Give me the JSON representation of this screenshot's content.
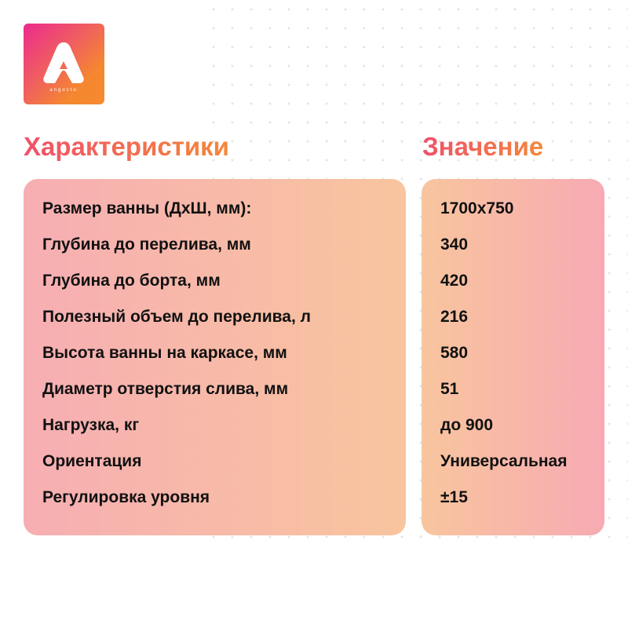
{
  "logo": {
    "text": "angosto",
    "colors": [
      "#ec2a8e",
      "#f68a30"
    ]
  },
  "headers": {
    "characteristics": "Характеристики",
    "value": "Значение"
  },
  "rows": [
    {
      "name": "Размер ванны (ДхШ, мм):",
      "value": "1700x750"
    },
    {
      "name": "Глубина до перелива, мм",
      "value": "340"
    },
    {
      "name": "Глубина до борта, мм",
      "value": "420"
    },
    {
      "name": "Полезный объем до перелива, л",
      "value": "216"
    },
    {
      "name": "Высота ванны на каркасе, мм",
      "value": "580"
    },
    {
      "name": "Диаметр отверстия слива, мм",
      "value": "51"
    },
    {
      "name": "Нагрузка, кг",
      "value": "до 900"
    },
    {
      "name": "Ориентация",
      "value": "Универсальная"
    },
    {
      "name": "Регулировка уровня",
      "value": "±15"
    }
  ]
}
